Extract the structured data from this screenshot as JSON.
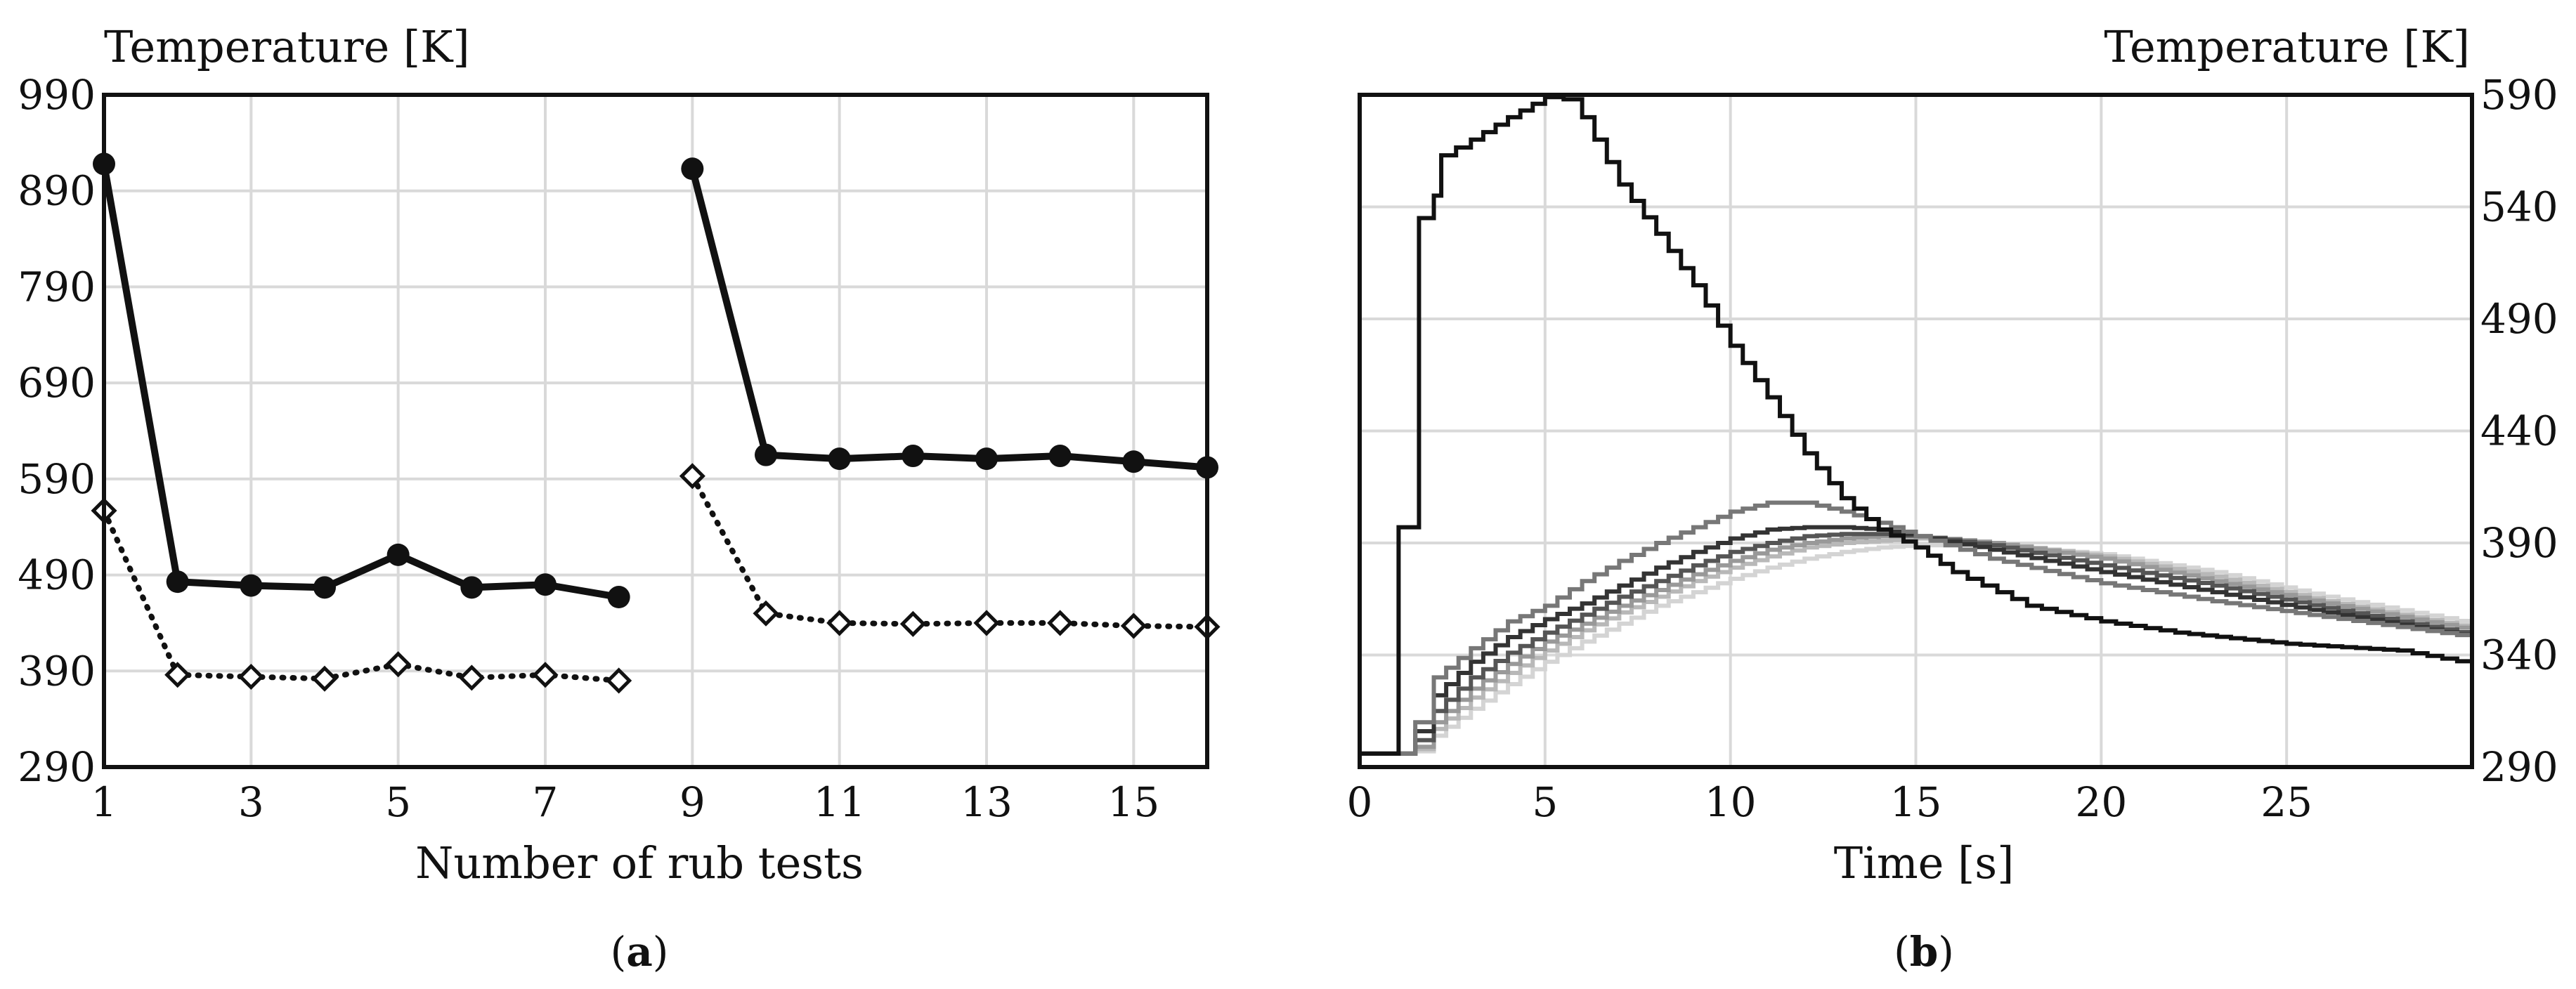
{
  "chart_data": [
    {
      "type": "line",
      "panel_label": "a",
      "ylabel": "Temperature [K]",
      "xlabel": "Number of rub tests",
      "xlim": [
        1,
        16
      ],
      "ylim": [
        290,
        990
      ],
      "x_ticks": [
        1,
        3,
        5,
        7,
        9,
        11,
        13,
        15
      ],
      "y_ticks": [
        290,
        390,
        490,
        590,
        690,
        790,
        890,
        990
      ],
      "grid": true,
      "series": [
        {
          "style": "solid-filled-circle",
          "x": [
            1,
            2,
            3,
            4,
            5,
            6,
            7,
            8
          ],
          "values": [
            918,
            483,
            479,
            477,
            511,
            477,
            480,
            467
          ]
        },
        {
          "style": "solid-filled-circle",
          "x": [
            9,
            10,
            11,
            12,
            13,
            14,
            15,
            16
          ],
          "values": [
            913,
            615,
            611,
            614,
            611,
            614,
            608,
            602
          ]
        },
        {
          "style": "dotted-open-diamond",
          "x": [
            1,
            2,
            3,
            4,
            5,
            6,
            7,
            8
          ],
          "values": [
            557,
            386,
            384,
            382,
            397,
            383,
            386,
            380
          ]
        },
        {
          "style": "dotted-open-diamond",
          "x": [
            9,
            10,
            11,
            12,
            13,
            14,
            15,
            16
          ],
          "values": [
            593,
            450,
            440,
            439,
            440,
            440,
            437,
            436
          ]
        }
      ]
    },
    {
      "type": "line",
      "panel_label": "b",
      "ylabel": "Temperature [K]",
      "xlabel": "Time [s]",
      "xlim": [
        0,
        30
      ],
      "ylim": [
        290,
        590
      ],
      "x_ticks": [
        0,
        5,
        10,
        15,
        20,
        25
      ],
      "y_ticks": [
        290,
        340,
        390,
        440,
        490,
        540,
        590
      ],
      "y_axis_side": "right",
      "grid": true,
      "series": [
        {
          "color": "#111111",
          "x": [
            0,
            1,
            1.05,
            1.5,
            1.6,
            2.0,
            2.2,
            3,
            4,
            5,
            5.5,
            6,
            7,
            8,
            9,
            10,
            11,
            12,
            13,
            14,
            15,
            16,
            18,
            20,
            22,
            25,
            28,
            30
          ],
          "values": [
            296,
            296,
            397,
            397,
            535,
            545,
            563,
            570,
            580,
            589,
            588,
            580,
            550,
            528,
            505,
            478,
            455,
            430,
            410,
            396,
            388,
            377,
            362,
            355,
            350,
            345,
            342,
            336
          ]
        },
        {
          "color": "#777777",
          "x": [
            0,
            1.1,
            1.5,
            2,
            3,
            4,
            5,
            6,
            7,
            8,
            9,
            10,
            11,
            12,
            13,
            14,
            15,
            17,
            20,
            23,
            26,
            30
          ],
          "values": [
            296,
            296,
            310,
            330,
            343,
            355,
            362,
            373,
            382,
            390,
            397,
            404,
            408,
            408,
            404,
            399,
            393,
            383,
            372,
            364,
            357,
            348
          ]
        },
        {
          "color": "#333333",
          "x": [
            0,
            1.1,
            1.5,
            2,
            3,
            4,
            5,
            6,
            7,
            8,
            9,
            10,
            11,
            12,
            13,
            14,
            15,
            17,
            20,
            23,
            26,
            30
          ],
          "values": [
            296,
            296,
            306,
            322,
            337,
            348,
            356,
            363,
            371,
            379,
            386,
            392,
            396,
            397,
            397,
            396,
            393,
            387,
            377,
            368,
            359,
            348
          ]
        },
        {
          "color": "#555555",
          "x": [
            0,
            1.1,
            1.5,
            2,
            3,
            4,
            5,
            6,
            7,
            8,
            9,
            10,
            11,
            12,
            13,
            14,
            15,
            17,
            20,
            23,
            26,
            30
          ],
          "values": [
            296,
            296,
            302,
            315,
            330,
            341,
            350,
            358,
            366,
            373,
            380,
            386,
            390,
            393,
            394,
            394,
            393,
            389,
            380,
            371,
            361,
            349
          ]
        },
        {
          "color": "#999999",
          "x": [
            0,
            1.1,
            1.5,
            2,
            3,
            4,
            5,
            6,
            7,
            8,
            9,
            10,
            11,
            12,
            13,
            14,
            15,
            17,
            20,
            23,
            26,
            30
          ],
          "values": [
            296,
            296,
            299,
            310,
            325,
            336,
            346,
            354,
            362,
            369,
            376,
            382,
            387,
            390,
            392,
            393,
            393,
            390,
            383,
            373,
            363,
            351
          ]
        },
        {
          "color": "#b8b8b8",
          "x": [
            0,
            1.1,
            1.5,
            2,
            3,
            4,
            5,
            6,
            7,
            8,
            9,
            10,
            11,
            12,
            13,
            14,
            15,
            17,
            20,
            23,
            26,
            30
          ],
          "values": [
            296,
            296,
            298,
            307,
            321,
            332,
            342,
            351,
            359,
            366,
            373,
            379,
            384,
            388,
            390,
            391,
            392,
            390,
            384,
            375,
            364,
            352
          ]
        },
        {
          "color": "#d4d4d4",
          "x": [
            0,
            1.1,
            1.5,
            2,
            3,
            4,
            5,
            6,
            7,
            8,
            9,
            10,
            11,
            12,
            13,
            14,
            15,
            17,
            20,
            23,
            26,
            30
          ],
          "values": [
            296,
            296,
            297,
            304,
            316,
            327,
            337,
            346,
            354,
            362,
            368,
            374,
            379,
            383,
            386,
            388,
            389,
            389,
            385,
            377,
            366,
            354
          ]
        }
      ]
    }
  ]
}
